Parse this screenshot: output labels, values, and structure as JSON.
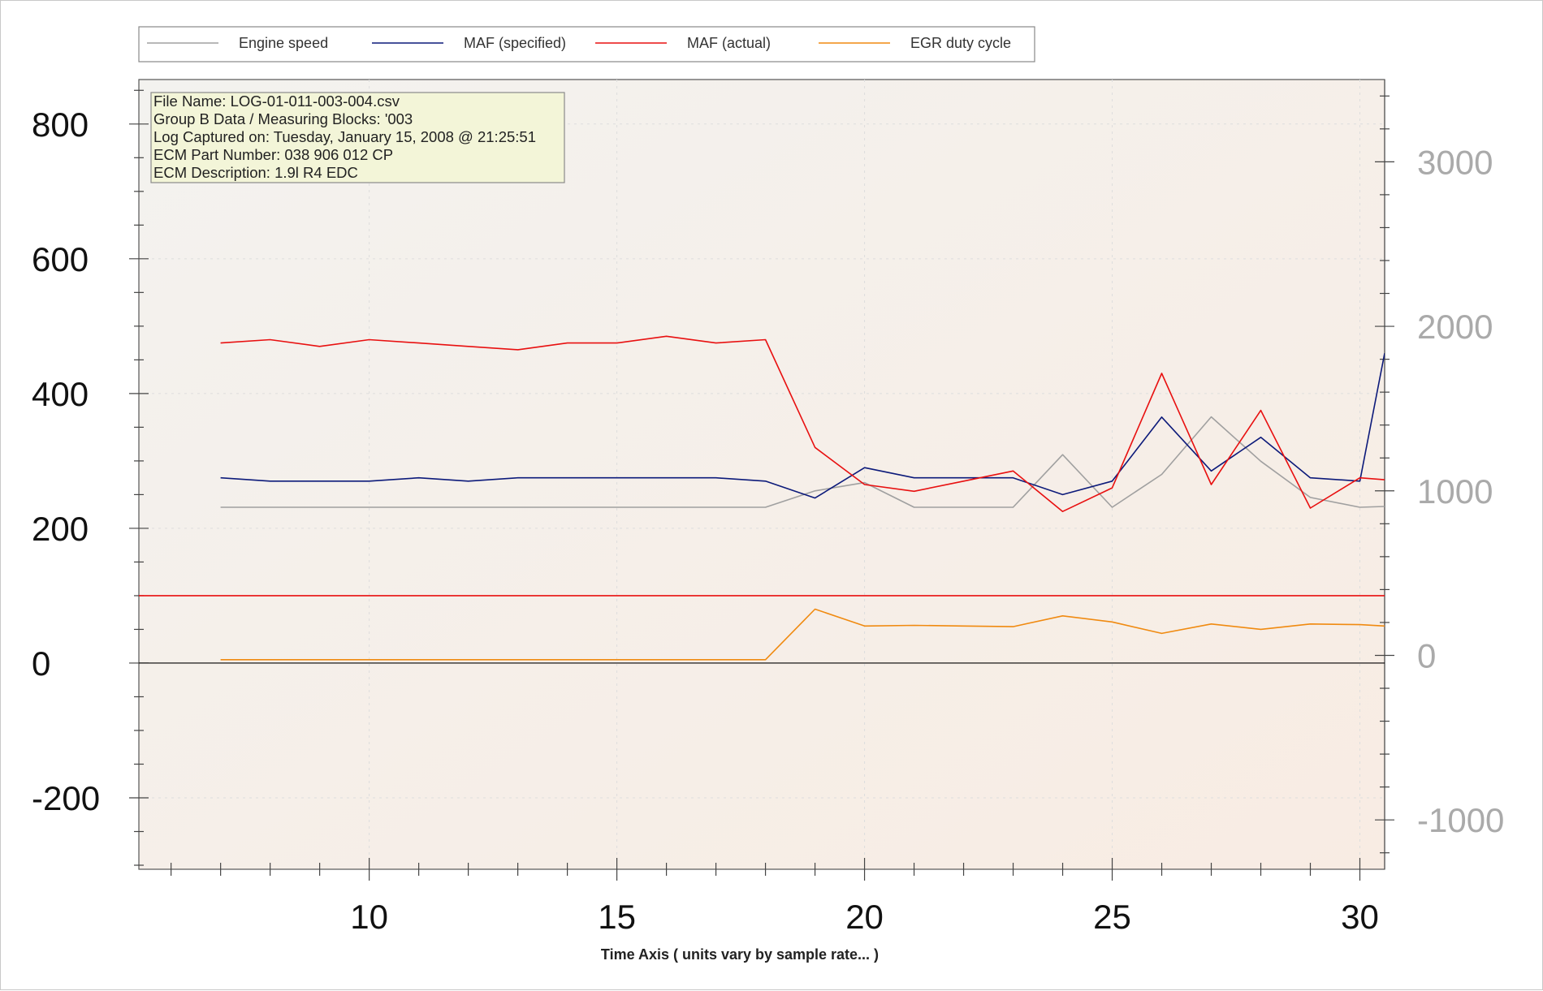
{
  "chart_data": {
    "type": "line",
    "xlabel": "Time Axis ( units vary by sample rate... )",
    "xlim": [
      5.35,
      30.5
    ],
    "x_ticks": [
      10,
      15,
      20,
      25,
      30
    ],
    "left_axis": {
      "ylim": [
        -306,
        866
      ],
      "ticks": [
        -200,
        0,
        200,
        400,
        600,
        800
      ]
    },
    "right_axis": {
      "ylim": [
        -1300,
        3500
      ],
      "ticks": [
        -1000,
        0,
        1000,
        2000,
        3000
      ]
    },
    "x": [
      7,
      8,
      9,
      10,
      11,
      12,
      13,
      14,
      15,
      16,
      17,
      18,
      19,
      20,
      21,
      22,
      23,
      24,
      25,
      26,
      27,
      28,
      29,
      30,
      30.5
    ],
    "series": [
      {
        "name": "Engine speed",
        "axis": "right",
        "color": "#a0a0a0",
        "values": [
          900,
          900,
          900,
          900,
          900,
          900,
          900,
          900,
          900,
          900,
          900,
          900,
          1000,
          1050,
          900,
          900,
          900,
          1220,
          900,
          1100,
          1450,
          1180,
          960,
          900,
          905
        ]
      },
      {
        "name": "MAF (specified)",
        "axis": "left",
        "color": "#0c1a7a",
        "values": [
          275,
          270,
          270,
          270,
          275,
          270,
          275,
          275,
          275,
          275,
          275,
          270,
          245,
          290,
          275,
          275,
          275,
          250,
          270,
          365,
          285,
          335,
          275,
          270,
          460
        ]
      },
      {
        "name": "MAF (actual)",
        "axis": "left",
        "color": "#e81010",
        "values": [
          475,
          480,
          470,
          480,
          475,
          470,
          465,
          475,
          475,
          485,
          475,
          480,
          320,
          265,
          255,
          270,
          285,
          225,
          260,
          430,
          265,
          375,
          230,
          275,
          272
        ]
      },
      {
        "name": "EGR duty cycle",
        "axis": "left",
        "color": "#f08a10",
        "values": [
          5,
          5,
          5,
          5,
          5,
          5,
          5,
          5,
          5,
          5,
          5,
          5,
          80,
          55,
          56,
          55,
          54,
          70,
          61,
          44,
          58,
          50,
          58,
          57,
          55
        ]
      }
    ],
    "reference_lines": [
      {
        "axis": "left",
        "value": 100,
        "color": "#e81010"
      },
      {
        "axis": "left",
        "value": 0,
        "color": "#000000"
      }
    ],
    "legend_position": "top"
  },
  "info_box": {
    "lines": [
      "File Name: LOG-01-011-003-004.csv",
      "Group B Data / Measuring Blocks: '003",
      "Log Captured on: Tuesday, January 15, 2008 @ 21:25:51",
      "ECM Part Number: 038 906 012 CP",
      "ECM Description: 1.9l R4 EDC"
    ]
  },
  "colors": {
    "plot_bg_start": "#f3f2ef",
    "plot_bg_end": "#f8ece3",
    "info_bg": "#f3f5d8"
  }
}
